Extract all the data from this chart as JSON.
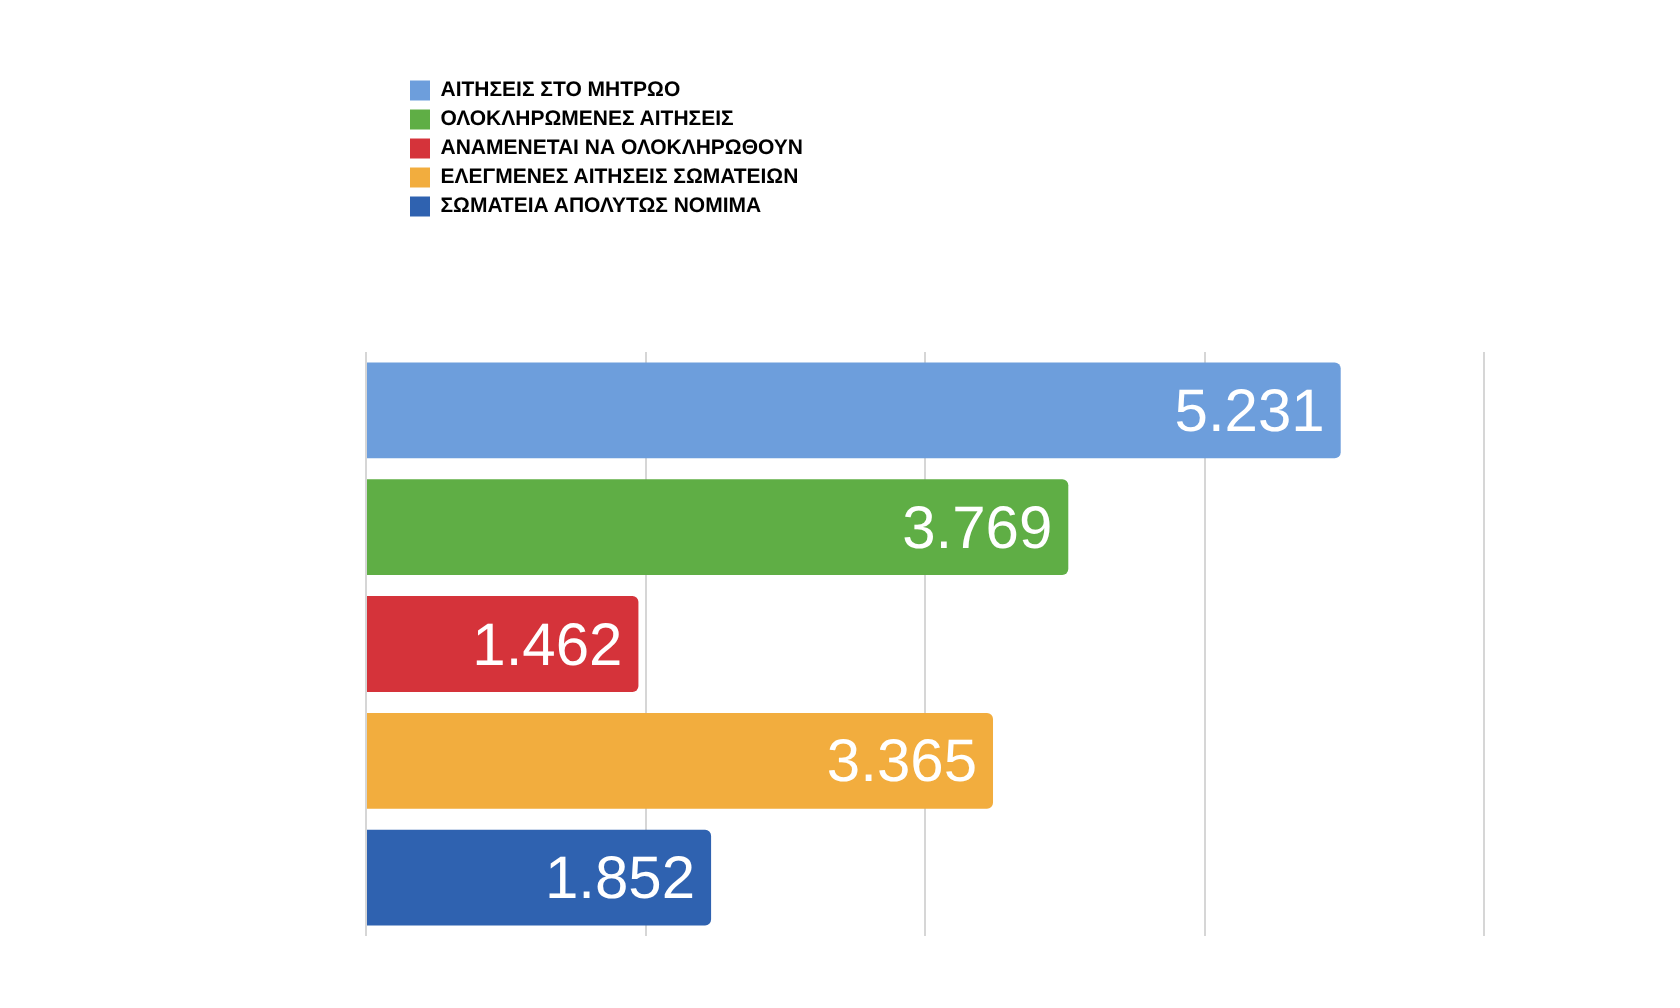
{
  "chart_data": {
    "type": "bar",
    "orientation": "horizontal",
    "categories": [
      null
    ],
    "series": [
      {
        "name": "ΑΙΤΗΣΕΙΣ ΣΤΟ ΜΗΤΡΩΟ",
        "color": "#6d9edc",
        "values": [
          5231
        ],
        "value_labels": [
          "5.231"
        ]
      },
      {
        "name": "ΟΛΟΚΛΗΡΩΜΕΝΕΣ ΑΙΤΗΣΕΙΣ",
        "color": "#5fae45",
        "values": [
          3769
        ],
        "value_labels": [
          "3.769"
        ]
      },
      {
        "name": "ΑΝΑΜΕΝΕΤΑΙ ΝΑ ΟΛΟΚΛΗΡΩΘΟΥΝ",
        "color": "#d5333a",
        "values": [
          1462
        ],
        "value_labels": [
          "1.462"
        ]
      },
      {
        "name": "ΕΛΕΓΜΕΝΕΣ ΑΙΤΗΣΕΙΣ ΣΩΜΑΤΕΙΩΝ",
        "color": "#f2ad3e",
        "values": [
          3365
        ],
        "value_labels": [
          "3.365"
        ]
      },
      {
        "name": "ΣΩΜΑΤΕΙΑ ΑΠΟΛΥΤΩΣ ΝΟΜΙΜΑ",
        "color": "#2f62b0",
        "values": [
          1852
        ],
        "value_labels": [
          "1.852"
        ]
      }
    ],
    "xlim": [
      0,
      6000
    ],
    "xticks": [
      {
        "value": 0,
        "label": null
      },
      {
        "value": 1500,
        "label": null
      },
      {
        "value": 3000,
        "label": null
      },
      {
        "value": 4500,
        "label": null
      },
      {
        "value": 6000,
        "label": null
      }
    ],
    "grid": "x",
    "legend": "top left",
    "tick_labels": false
  }
}
